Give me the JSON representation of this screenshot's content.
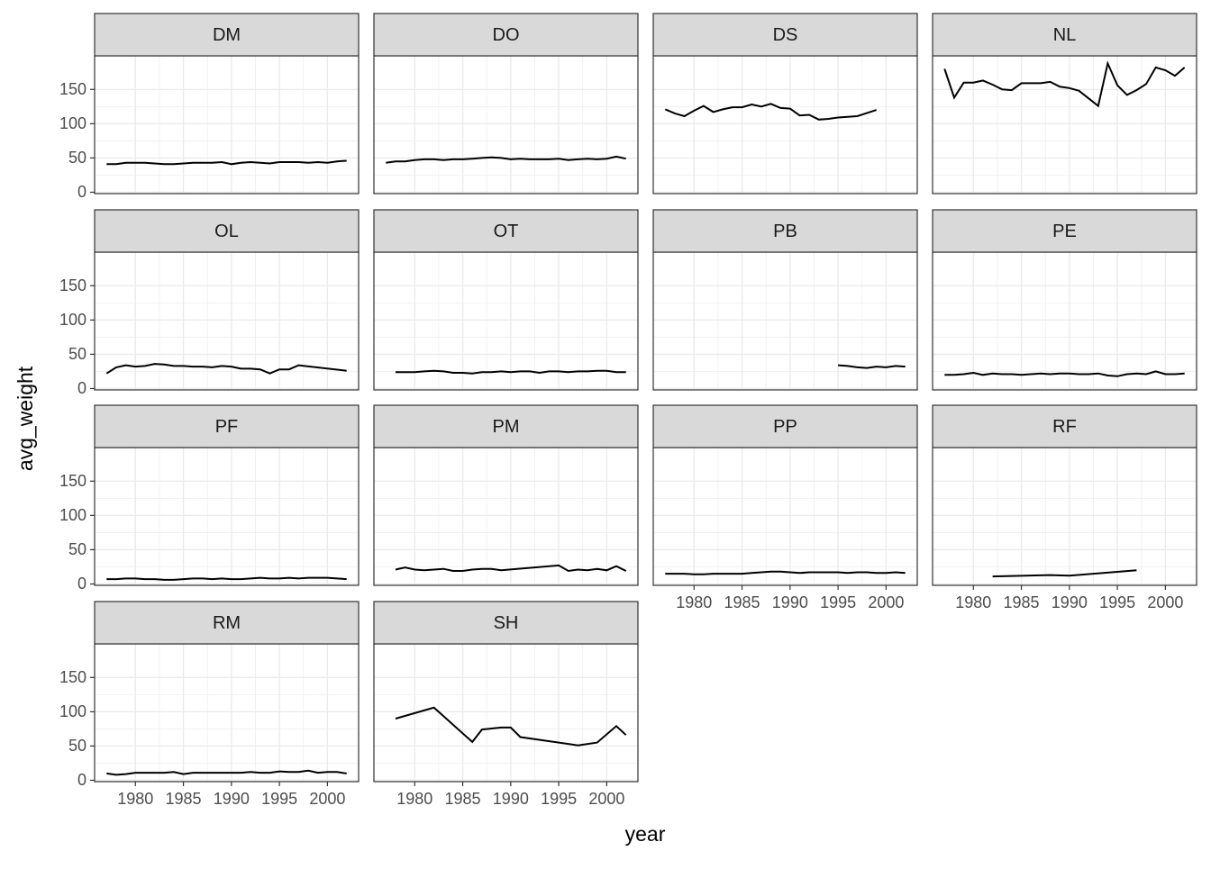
{
  "chart_data": {
    "type": "line",
    "xlabel": "year",
    "ylabel": "avg_weight",
    "color": "#000000",
    "grid": true,
    "xlim": [
      1975.75,
      2003.25
    ],
    "xticks": [
      1980,
      1985,
      1990,
      1995,
      2000
    ],
    "ylim": [
      -2,
      199
    ],
    "yticks": [
      0,
      50,
      100,
      150
    ],
    "facets": [
      {
        "title": "DM",
        "x": [
          1977,
          1978,
          1979,
          1980,
          1981,
          1982,
          1983,
          1984,
          1985,
          1986,
          1987,
          1988,
          1989,
          1990,
          1991,
          1992,
          1993,
          1994,
          1995,
          1996,
          1997,
          1998,
          1999,
          2000,
          2001,
          2002
        ],
        "values": [
          41,
          41,
          43,
          43,
          43,
          42,
          41,
          41,
          42,
          43,
          43,
          43,
          44,
          41,
          43,
          44,
          43,
          42,
          44,
          44,
          44,
          43,
          44,
          43,
          45,
          46
        ]
      },
      {
        "title": "DO",
        "x": [
          1977,
          1978,
          1979,
          1980,
          1981,
          1982,
          1983,
          1984,
          1985,
          1986,
          1987,
          1988,
          1989,
          1990,
          1991,
          1992,
          1993,
          1994,
          1995,
          1996,
          1997,
          1998,
          1999,
          2000,
          2001,
          2002
        ],
        "values": [
          43,
          45,
          45,
          47,
          48,
          48,
          47,
          48,
          48,
          49,
          50,
          51,
          50,
          48,
          49,
          48,
          48,
          48,
          49,
          47,
          48,
          49,
          48,
          49,
          52,
          49
        ]
      },
      {
        "title": "DS",
        "x": [
          1977,
          1978,
          1979,
          1980,
          1981,
          1982,
          1983,
          1984,
          1985,
          1986,
          1987,
          1988,
          1989,
          1990,
          1991,
          1992,
          1993,
          1994,
          1995,
          1997,
          1999
        ],
        "values": [
          121,
          115,
          111,
          119,
          126,
          117,
          121,
          124,
          124,
          128,
          125,
          129,
          123,
          122,
          112,
          113,
          106,
          107,
          109,
          111,
          120
        ]
      },
      {
        "title": "NL",
        "x": [
          1977,
          1978,
          1979,
          1980,
          1981,
          1982,
          1983,
          1984,
          1985,
          1986,
          1987,
          1988,
          1989,
          1990,
          1991,
          1992,
          1993,
          1994,
          1995,
          1996,
          1997,
          1998,
          1999,
          2000,
          2001,
          2002
        ],
        "values": [
          180,
          138,
          160,
          160,
          163,
          157,
          150,
          149,
          159,
          159,
          159,
          161,
          154,
          152,
          148,
          137,
          126,
          188,
          156,
          142,
          149,
          158,
          182,
          178,
          170,
          182
        ]
      },
      {
        "title": "OL",
        "x": [
          1977,
          1978,
          1979,
          1980,
          1981,
          1982,
          1983,
          1984,
          1985,
          1986,
          1987,
          1988,
          1989,
          1990,
          1991,
          1992,
          1993,
          1994,
          1995,
          1996,
          1997,
          2002
        ],
        "values": [
          22,
          31,
          34,
          32,
          33,
          36,
          35,
          33,
          33,
          32,
          32,
          31,
          33,
          32,
          29,
          29,
          28,
          22,
          28,
          28,
          34,
          26
        ]
      },
      {
        "title": "OT",
        "x": [
          1978,
          1979,
          1980,
          1981,
          1982,
          1983,
          1984,
          1985,
          1986,
          1987,
          1988,
          1989,
          1990,
          1991,
          1992,
          1993,
          1994,
          1995,
          1996,
          1997,
          1998,
          1999,
          2000,
          2001,
          2002
        ],
        "values": [
          24,
          24,
          24,
          25,
          26,
          25,
          23,
          23,
          22,
          24,
          24,
          25,
          24,
          25,
          25,
          23,
          25,
          25,
          24,
          25,
          25,
          26,
          26,
          24,
          24
        ]
      },
      {
        "title": "PB",
        "x": [
          1995,
          1996,
          1997,
          1998,
          1999,
          2000,
          2001,
          2002
        ],
        "values": [
          34,
          33,
          31,
          30,
          32,
          31,
          33,
          32
        ]
      },
      {
        "title": "PE",
        "x": [
          1977,
          1978,
          1979,
          1980,
          1981,
          1982,
          1983,
          1984,
          1985,
          1986,
          1987,
          1988,
          1989,
          1990,
          1991,
          1992,
          1993,
          1994,
          1995,
          1996,
          1997,
          1998,
          1999,
          2000,
          2001,
          2002
        ],
        "values": [
          20,
          20,
          21,
          23,
          20,
          22,
          21,
          21,
          20,
          21,
          22,
          21,
          22,
          22,
          21,
          21,
          22,
          19,
          18,
          21,
          22,
          21,
          25,
          21,
          21,
          22
        ]
      },
      {
        "title": "PF",
        "x": [
          1977,
          1978,
          1979,
          1980,
          1981,
          1982,
          1983,
          1984,
          1985,
          1986,
          1987,
          1988,
          1989,
          1990,
          1991,
          1992,
          1993,
          1994,
          1995,
          1996,
          1997,
          1998,
          1999,
          2000,
          2001,
          2002
        ],
        "values": [
          7,
          7,
          8,
          8,
          7,
          7,
          6,
          6,
          7,
          8,
          8,
          7,
          8,
          7,
          7,
          8,
          9,
          8,
          8,
          9,
          8,
          9,
          9,
          9,
          8,
          7
        ]
      },
      {
        "title": "PM",
        "x": [
          1978,
          1979,
          1980,
          1981,
          1982,
          1983,
          1984,
          1985,
          1986,
          1987,
          1988,
          1989,
          1995,
          1996,
          1997,
          1998,
          1999,
          2000,
          2001,
          2002
        ],
        "values": [
          21,
          24,
          21,
          20,
          21,
          22,
          19,
          19,
          21,
          22,
          22,
          20,
          27,
          19,
          21,
          20,
          22,
          20,
          26,
          19
        ]
      },
      {
        "title": "PP",
        "x": [
          1977,
          1978,
          1979,
          1980,
          1981,
          1982,
          1983,
          1984,
          1985,
          1986,
          1987,
          1988,
          1989,
          1990,
          1991,
          1992,
          1993,
          1994,
          1995,
          1996,
          1997,
          1998,
          1999,
          2000,
          2001,
          2002
        ],
        "values": [
          15,
          15,
          15,
          14,
          14,
          15,
          15,
          15,
          15,
          16,
          17,
          18,
          18,
          17,
          16,
          17,
          17,
          17,
          17,
          16,
          17,
          17,
          16,
          16,
          17,
          16
        ]
      },
      {
        "title": "RF",
        "x": [
          1982,
          1988,
          1990,
          1997
        ],
        "values": [
          11,
          13,
          12,
          20
        ]
      },
      {
        "title": "RM",
        "x": [
          1977,
          1978,
          1979,
          1980,
          1981,
          1982,
          1983,
          1984,
          1985,
          1986,
          1987,
          1988,
          1989,
          1990,
          1991,
          1992,
          1993,
          1994,
          1995,
          1996,
          1997,
          1998,
          1999,
          2000,
          2001,
          2002
        ],
        "values": [
          10,
          8,
          9,
          11,
          11,
          11,
          11,
          12,
          9,
          11,
          11,
          11,
          11,
          11,
          11,
          12,
          11,
          11,
          13,
          12,
          12,
          14,
          11,
          12,
          12,
          10
        ]
      },
      {
        "title": "SH",
        "x": [
          1978,
          1982,
          1986,
          1987,
          1989,
          1990,
          1991,
          1997,
          1999,
          2001,
          2002
        ],
        "values": [
          90,
          106,
          56,
          74,
          77,
          77,
          63,
          51,
          55,
          79,
          66
        ]
      }
    ]
  }
}
